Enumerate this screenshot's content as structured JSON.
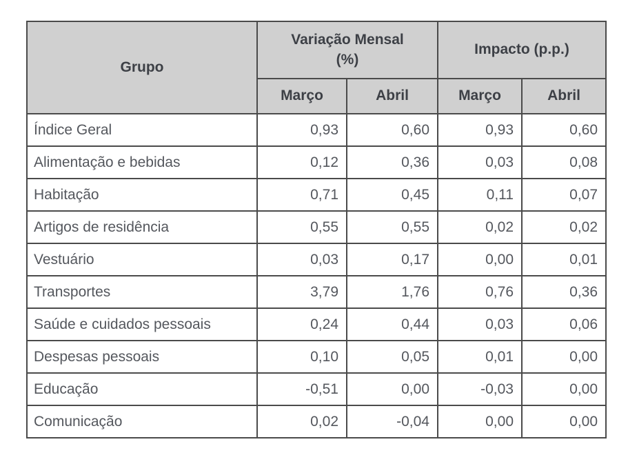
{
  "colors": {
    "header_bg": "#d0d0d0",
    "border": "#4a4a4a",
    "header_text": "#3d4046",
    "body_text": "#54575d",
    "row_bg": "#ffffff"
  },
  "chart_data": {
    "type": "table",
    "column_groups": [
      {
        "label": "Grupo",
        "span": 1
      },
      {
        "label": "Variação Mensal (%)",
        "span": 2
      },
      {
        "label": "Impacto (p.p.)",
        "span": 2
      }
    ],
    "sub_headers": [
      "Março",
      "Abril",
      "Março",
      "Abril"
    ],
    "rows": [
      {
        "group": "Índice Geral",
        "values": [
          "0,93",
          "0,60",
          "0,93",
          "0,60"
        ]
      },
      {
        "group": "Alimentação e bebidas",
        "values": [
          "0,12",
          "0,36",
          "0,03",
          "0,08"
        ]
      },
      {
        "group": "Habitação",
        "values": [
          "0,71",
          "0,45",
          "0,11",
          "0,07"
        ]
      },
      {
        "group": "Artigos de residência",
        "values": [
          "0,55",
          "0,55",
          "0,02",
          "0,02"
        ]
      },
      {
        "group": "Vestuário",
        "values": [
          "0,03",
          "0,17",
          "0,00",
          "0,01"
        ]
      },
      {
        "group": "Transportes",
        "values": [
          "3,79",
          "1,76",
          "0,76",
          "0,36"
        ]
      },
      {
        "group": "Saúde e cuidados pessoais",
        "values": [
          "0,24",
          "0,44",
          "0,03",
          "0,06"
        ]
      },
      {
        "group": "Despesas pessoais",
        "values": [
          "0,10",
          "0,05",
          "0,01",
          "0,00"
        ]
      },
      {
        "group": "Educação",
        "values": [
          "-0,51",
          "0,00",
          "-0,03",
          "0,00"
        ]
      },
      {
        "group": "Comunicação",
        "values": [
          "0,02",
          "-0,04",
          "0,00",
          "0,00"
        ]
      }
    ]
  }
}
